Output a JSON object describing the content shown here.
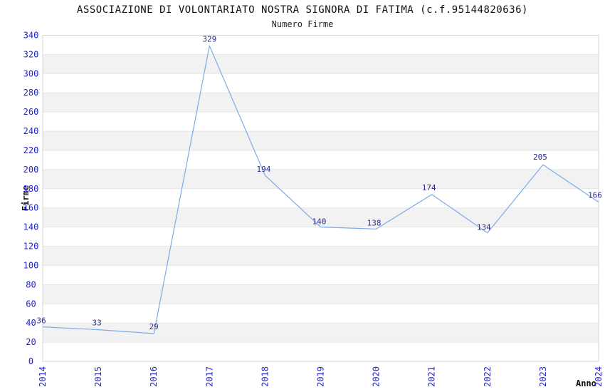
{
  "chart": {
    "title": "ASSOCIAZIONE DI VOLONTARIATO NOSTRA SIGNORA DI FATIMA (c.f.95144820636)",
    "subtitle": "Numero Firme"
  },
  "chart_data": {
    "type": "line",
    "title": "ASSOCIAZIONE DI VOLONTARIATO NOSTRA SIGNORA DI FATIMA (c.f.95144820636)",
    "subtitle": "Numero Firme",
    "xlabel": "Anno",
    "ylabel": "Firme",
    "x": [
      "2014",
      "2015",
      "2016",
      "2017",
      "2018",
      "2019",
      "2020",
      "2021",
      "2022",
      "2023",
      "2024"
    ],
    "values": [
      36,
      33,
      29,
      329,
      194,
      140,
      138,
      174,
      134,
      205,
      166
    ],
    "ylim": [
      0,
      340
    ],
    "ytick_step": 20,
    "grid": "horizontal-only",
    "background_bands": "alternating gray/white every 20 units, white at top band 320-340",
    "legend": "none",
    "point_labels_visible": true,
    "colors": {
      "line": "#7dabe6",
      "point_label": "#2b2b8c",
      "tick_label": "#2323cc",
      "band": "#f2f2f2",
      "grid": "#e7e7e7",
      "border": "#d6d6d6",
      "title": "#111111"
    }
  }
}
